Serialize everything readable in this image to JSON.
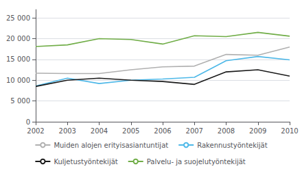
{
  "chart_data": {
    "type": "line",
    "x": [
      2002,
      2003,
      2004,
      2005,
      2006,
      2007,
      2008,
      2009,
      2010
    ],
    "series": [
      {
        "name": "Muiden alojen erityisasiantuntijat",
        "color": "#b0b0b0",
        "values": [
          11700,
          11600,
          11600,
          12500,
          13200,
          13400,
          16200,
          16000,
          18000
        ]
      },
      {
        "name": "Rakennustyöntekijät",
        "color": "#4db8e8",
        "values": [
          8600,
          10500,
          9200,
          10000,
          10300,
          10700,
          14700,
          15700,
          14900
        ]
      },
      {
        "name": "Kuljetustyöntekijät",
        "color": "#1a1a1a",
        "values": [
          8500,
          10000,
          10500,
          10000,
          9700,
          9000,
          12000,
          12500,
          11000
        ]
      },
      {
        "name": "Palvelu- ja suojelutyöntekijät",
        "color": "#70ad47",
        "values": [
          18100,
          18500,
          20000,
          19800,
          18700,
          20700,
          20500,
          21500,
          20600
        ]
      }
    ],
    "xlim": [
      2002,
      2010
    ],
    "xticks": [
      2002,
      2003,
      2004,
      2005,
      2006,
      2007,
      2008,
      2009,
      2010
    ],
    "ylim": [
      0,
      27000
    ],
    "yticks": [
      0,
      {
        "value": 5000,
        "label": "5 000"
      },
      {
        "value": 10000,
        "label": "10 000"
      },
      {
        "value": 15000,
        "label": "15 000"
      },
      {
        "value": 20000,
        "label": "20 000"
      },
      {
        "value": 25000,
        "label": "25 000"
      }
    ],
    "grid": true,
    "legend": "bottom"
  }
}
